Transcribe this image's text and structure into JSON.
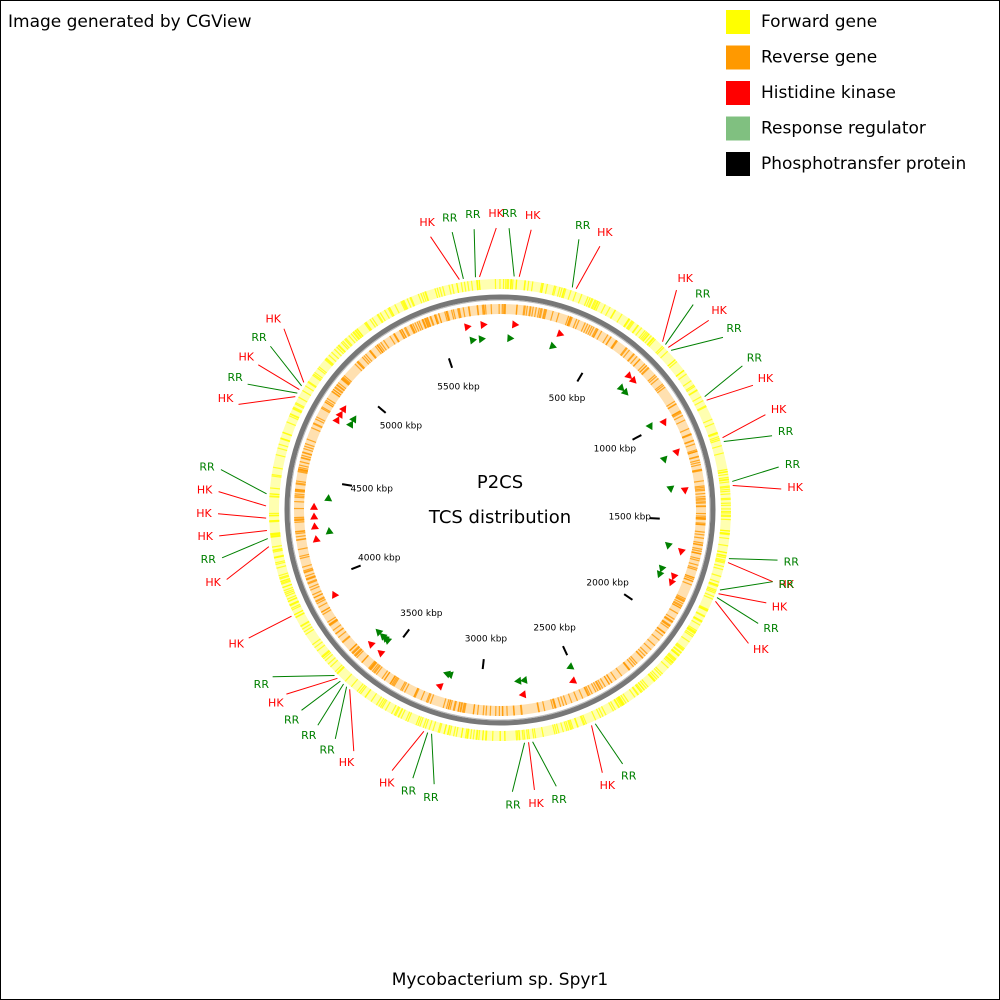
{
  "header": {
    "credit": "Image generated by CGView"
  },
  "legend": [
    {
      "label": "Forward gene",
      "color": "#ffff00"
    },
    {
      "label": "Reverse gene",
      "color": "#ff9900"
    },
    {
      "label": "Histidine kinase",
      "color": "#ff0000"
    },
    {
      "label": "Response regulator",
      "color": "#80c080"
    },
    {
      "label": "Phosphotransfer protein",
      "color": "#000000"
    }
  ],
  "map": {
    "title": "P2CS",
    "subtitle": "TCS distribution",
    "xlim": [
      0,
      5800
    ],
    "xticks": [
      {
        "value": 500,
        "label": "500 kbp"
      },
      {
        "value": 1000,
        "label": "1000 kbp"
      },
      {
        "value": 1500,
        "label": "1500 kbp"
      },
      {
        "value": 2000,
        "label": "2000 kbp"
      },
      {
        "value": 2500,
        "label": "2500 kbp"
      },
      {
        "value": 3000,
        "label": "3000 kbp"
      },
      {
        "value": 3500,
        "label": "3500 kbp"
      },
      {
        "value": 4000,
        "label": "4000 kbp"
      },
      {
        "value": 4500,
        "label": "4500 kbp"
      },
      {
        "value": 5000,
        "label": "5000 kbp"
      },
      {
        "value": 5500,
        "label": "5500 kbp"
      }
    ],
    "features": [
      {
        "label": "RR",
        "position": 56,
        "color": "#008000"
      },
      {
        "label": "HK",
        "position": 76,
        "color": "#ff0000"
      },
      {
        "label": "RR",
        "position": 290,
        "color": "#008000"
      },
      {
        "label": "HK",
        "position": 306,
        "color": "#ff0000"
      },
      {
        "label": "HK",
        "position": 709,
        "color": "#ff0000"
      },
      {
        "label": "RR",
        "position": 725,
        "color": "#008000"
      },
      {
        "label": "HK",
        "position": 741,
        "color": "#ff0000"
      },
      {
        "label": "RR",
        "position": 757,
        "color": "#008000"
      },
      {
        "label": "RR",
        "position": 983,
        "color": "#008000"
      },
      {
        "label": "HK",
        "position": 999,
        "color": "#ff0000"
      },
      {
        "label": "HK",
        "position": 1160,
        "color": "#ff0000"
      },
      {
        "label": "RR",
        "position": 1176,
        "color": "#008000"
      },
      {
        "label": "RR",
        "position": 1337,
        "color": "#008000"
      },
      {
        "label": "HK",
        "position": 1353,
        "color": "#ff0000"
      },
      {
        "label": "RR",
        "position": 1643,
        "color": "#008000"
      },
      {
        "label": "HK",
        "position": 1659,
        "color": "#ff0000"
      },
      {
        "label": "RR",
        "position": 1772,
        "color": "#008000"
      },
      {
        "label": "HK",
        "position": 1788,
        "color": "#ff0000"
      },
      {
        "label": "RR",
        "position": 1804,
        "color": "#008000"
      },
      {
        "label": "HK",
        "position": 1820,
        "color": "#ff0000"
      },
      {
        "label": "RR",
        "position": 2513,
        "color": "#008000"
      },
      {
        "label": "HK",
        "position": 2529,
        "color": "#ff0000"
      },
      {
        "label": "RR",
        "position": 2771,
        "color": "#008000"
      },
      {
        "label": "HK",
        "position": 2787,
        "color": "#ff0000"
      },
      {
        "label": "RR",
        "position": 2803,
        "color": "#008000"
      },
      {
        "label": "RR",
        "position": 3174,
        "color": "#008000"
      },
      {
        "label": "RR",
        "position": 3190,
        "color": "#008000"
      },
      {
        "label": "HK",
        "position": 3206,
        "color": "#ff0000"
      },
      {
        "label": "HK",
        "position": 3544,
        "color": "#ff0000"
      },
      {
        "label": "RR",
        "position": 3560,
        "color": "#008000"
      },
      {
        "label": "RR",
        "position": 3576,
        "color": "#008000"
      },
      {
        "label": "RR",
        "position": 3593,
        "color": "#008000"
      },
      {
        "label": "HK",
        "position": 3609,
        "color": "#ff0000"
      },
      {
        "label": "RR",
        "position": 3625,
        "color": "#008000"
      },
      {
        "label": "HK",
        "position": 3915,
        "color": "#ff0000"
      },
      {
        "label": "HK",
        "position": 4205,
        "color": "#ff0000"
      },
      {
        "label": "RR",
        "position": 4237,
        "color": "#008000"
      },
      {
        "label": "HK",
        "position": 4269,
        "color": "#ff0000"
      },
      {
        "label": "HK",
        "position": 4318,
        "color": "#ff0000"
      },
      {
        "label": "HK",
        "position": 4366,
        "color": "#ff0000"
      },
      {
        "label": "RR",
        "position": 4414,
        "color": "#008000"
      },
      {
        "label": "HK",
        "position": 4817,
        "color": "#ff0000"
      },
      {
        "label": "RR",
        "position": 4833,
        "color": "#008000"
      },
      {
        "label": "HK",
        "position": 4849,
        "color": "#ff0000"
      },
      {
        "label": "RR",
        "position": 4866,
        "color": "#008000"
      },
      {
        "label": "HK",
        "position": 4882,
        "color": "#ff0000"
      },
      {
        "label": "HK",
        "position": 5639,
        "color": "#ff0000"
      },
      {
        "label": "RR",
        "position": 5655,
        "color": "#008000"
      },
      {
        "label": "RR",
        "position": 5703,
        "color": "#008000"
      },
      {
        "label": "HK",
        "position": 5719,
        "color": "#ff0000"
      }
    ]
  },
  "footer": {
    "organism": "Mycobacterium sp. Spyr1"
  }
}
